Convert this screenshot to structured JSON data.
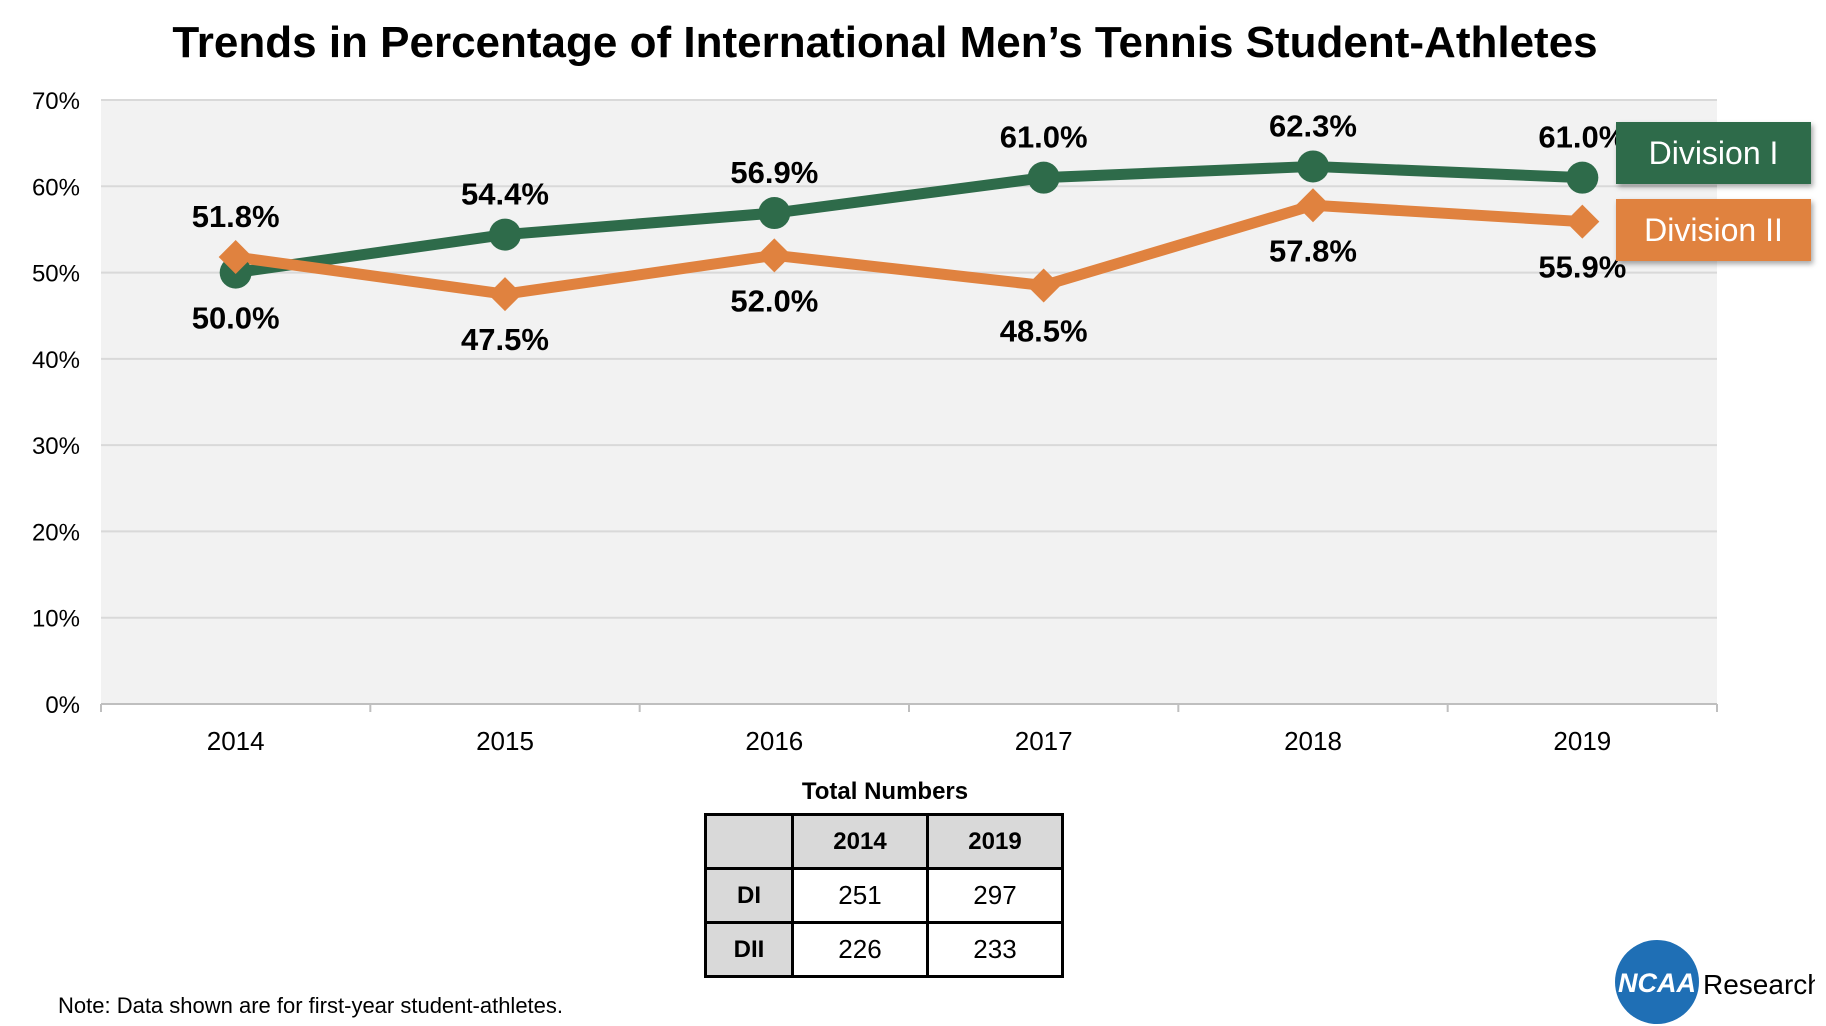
{
  "chart_data": {
    "type": "line",
    "title": "Trends in Percentage of International Men’s Tennis Student-Athletes",
    "categories": [
      "2014",
      "2015",
      "2016",
      "2017",
      "2018",
      "2019"
    ],
    "ylim": [
      0,
      70
    ],
    "yticks": [
      "0%",
      "10%",
      "20%",
      "30%",
      "40%",
      "50%",
      "60%",
      "70%"
    ],
    "grid": true,
    "legend_position": "right",
    "series": [
      {
        "name": "Division I",
        "color": "#2e6b4a",
        "marker": "circle",
        "values": [
          50.0,
          54.4,
          56.9,
          61.0,
          62.3,
          61.0
        ],
        "labels": [
          "50.0%",
          "54.4%",
          "56.9%",
          "61.0%",
          "62.3%",
          "61.0%"
        ]
      },
      {
        "name": "Division II",
        "color": "#e0823f",
        "marker": "diamond",
        "values": [
          51.8,
          47.5,
          52.0,
          48.5,
          57.8,
          55.9
        ],
        "labels": [
          "51.8%",
          "47.5%",
          "52.0%",
          "48.5%",
          "57.8%",
          "55.9%"
        ]
      }
    ]
  },
  "table": {
    "title": "Total Numbers",
    "columns": [
      "2014",
      "2019"
    ],
    "rows": [
      {
        "label": "DI",
        "values": [
          "251",
          "297"
        ]
      },
      {
        "label": "DII",
        "values": [
          "226",
          "233"
        ]
      }
    ]
  },
  "note": "Note: Data shown are for first-year student-athletes.",
  "logo": {
    "mark": "NCAA",
    "text": "Research",
    "color": "#1f6fb5"
  }
}
